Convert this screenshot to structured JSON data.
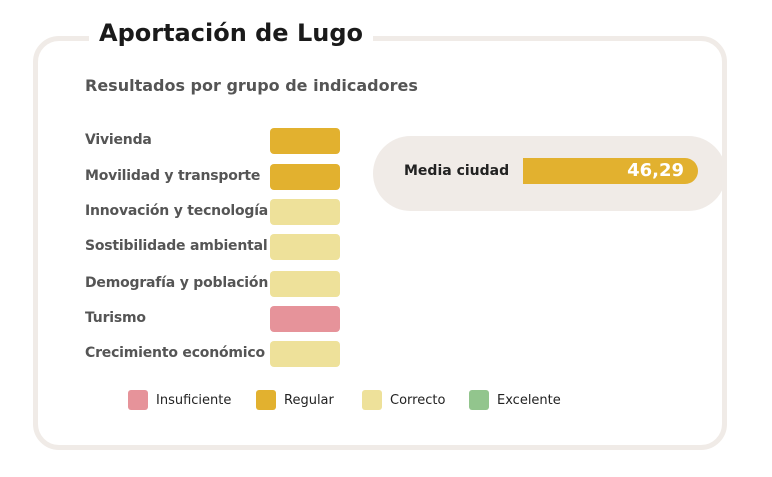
{
  "title": "Aportación de Lugo",
  "subtitle": "Resultados por grupo de indicadores",
  "indicators": [
    {
      "label": "Vivienda",
      "rating": "Regular",
      "color": "#e2b12f"
    },
    {
      "label": "Movilidad y transporte",
      "rating": "Regular",
      "color": "#e2b12f"
    },
    {
      "label": "Innovación y tecnología",
      "rating": "Correcto",
      "color": "#eee19a"
    },
    {
      "label": "Sostibilidade ambiental",
      "rating": "Correcto",
      "color": "#eee19a"
    },
    {
      "label": "Demografía y población",
      "rating": "Correcto",
      "color": "#eee19a"
    },
    {
      "label": "Turismo",
      "rating": "Insuficiente",
      "color": "#e6939a"
    },
    {
      "label": "Crecimiento económico",
      "rating": "Correcto",
      "color": "#eee19a"
    }
  ],
  "average": {
    "label": "Media ciudad",
    "value": "46,29",
    "color": "#e2b12f"
  },
  "legend": [
    {
      "label": "Insuficiente",
      "color": "#e6939a"
    },
    {
      "label": "Regular",
      "color": "#e2b12f"
    },
    {
      "label": "Correcto",
      "color": "#eee19a"
    },
    {
      "label": "Excelente",
      "color": "#92c58d"
    }
  ]
}
